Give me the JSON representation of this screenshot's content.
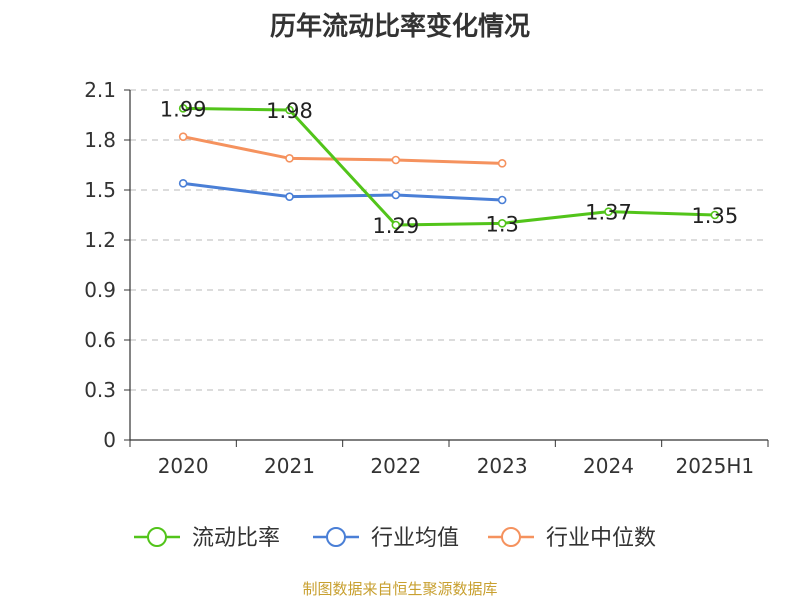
{
  "chart_data": {
    "type": "line",
    "title": "历年流动比率变化情况",
    "categories": [
      "2020",
      "2021",
      "2022",
      "2023",
      "2024",
      "2025H1"
    ],
    "ylim": [
      0,
      2.1
    ],
    "yticks": [
      "0",
      "0.3",
      "0.6",
      "0.9",
      "1.2",
      "1.5",
      "1.8",
      "2.1"
    ],
    "grid": true,
    "legend_position": "bottom",
    "series": [
      {
        "name": "流动比率",
        "color": "#52c41a",
        "values": [
          1.99,
          1.98,
          1.29,
          1.3,
          1.37,
          1.35
        ],
        "labels": [
          "1.99",
          "1.98",
          "1.29",
          "1.3",
          "1.37",
          "1.35"
        ]
      },
      {
        "name": "行业均值",
        "color": "#4a7fd6",
        "values": [
          1.54,
          1.46,
          1.47,
          1.44,
          null,
          null
        ]
      },
      {
        "name": "行业中位数",
        "color": "#f5925e",
        "values": [
          1.82,
          1.69,
          1.68,
          1.66,
          null,
          null
        ]
      }
    ]
  },
  "footer": {
    "source": "制图数据来自恒生聚源数据库"
  }
}
